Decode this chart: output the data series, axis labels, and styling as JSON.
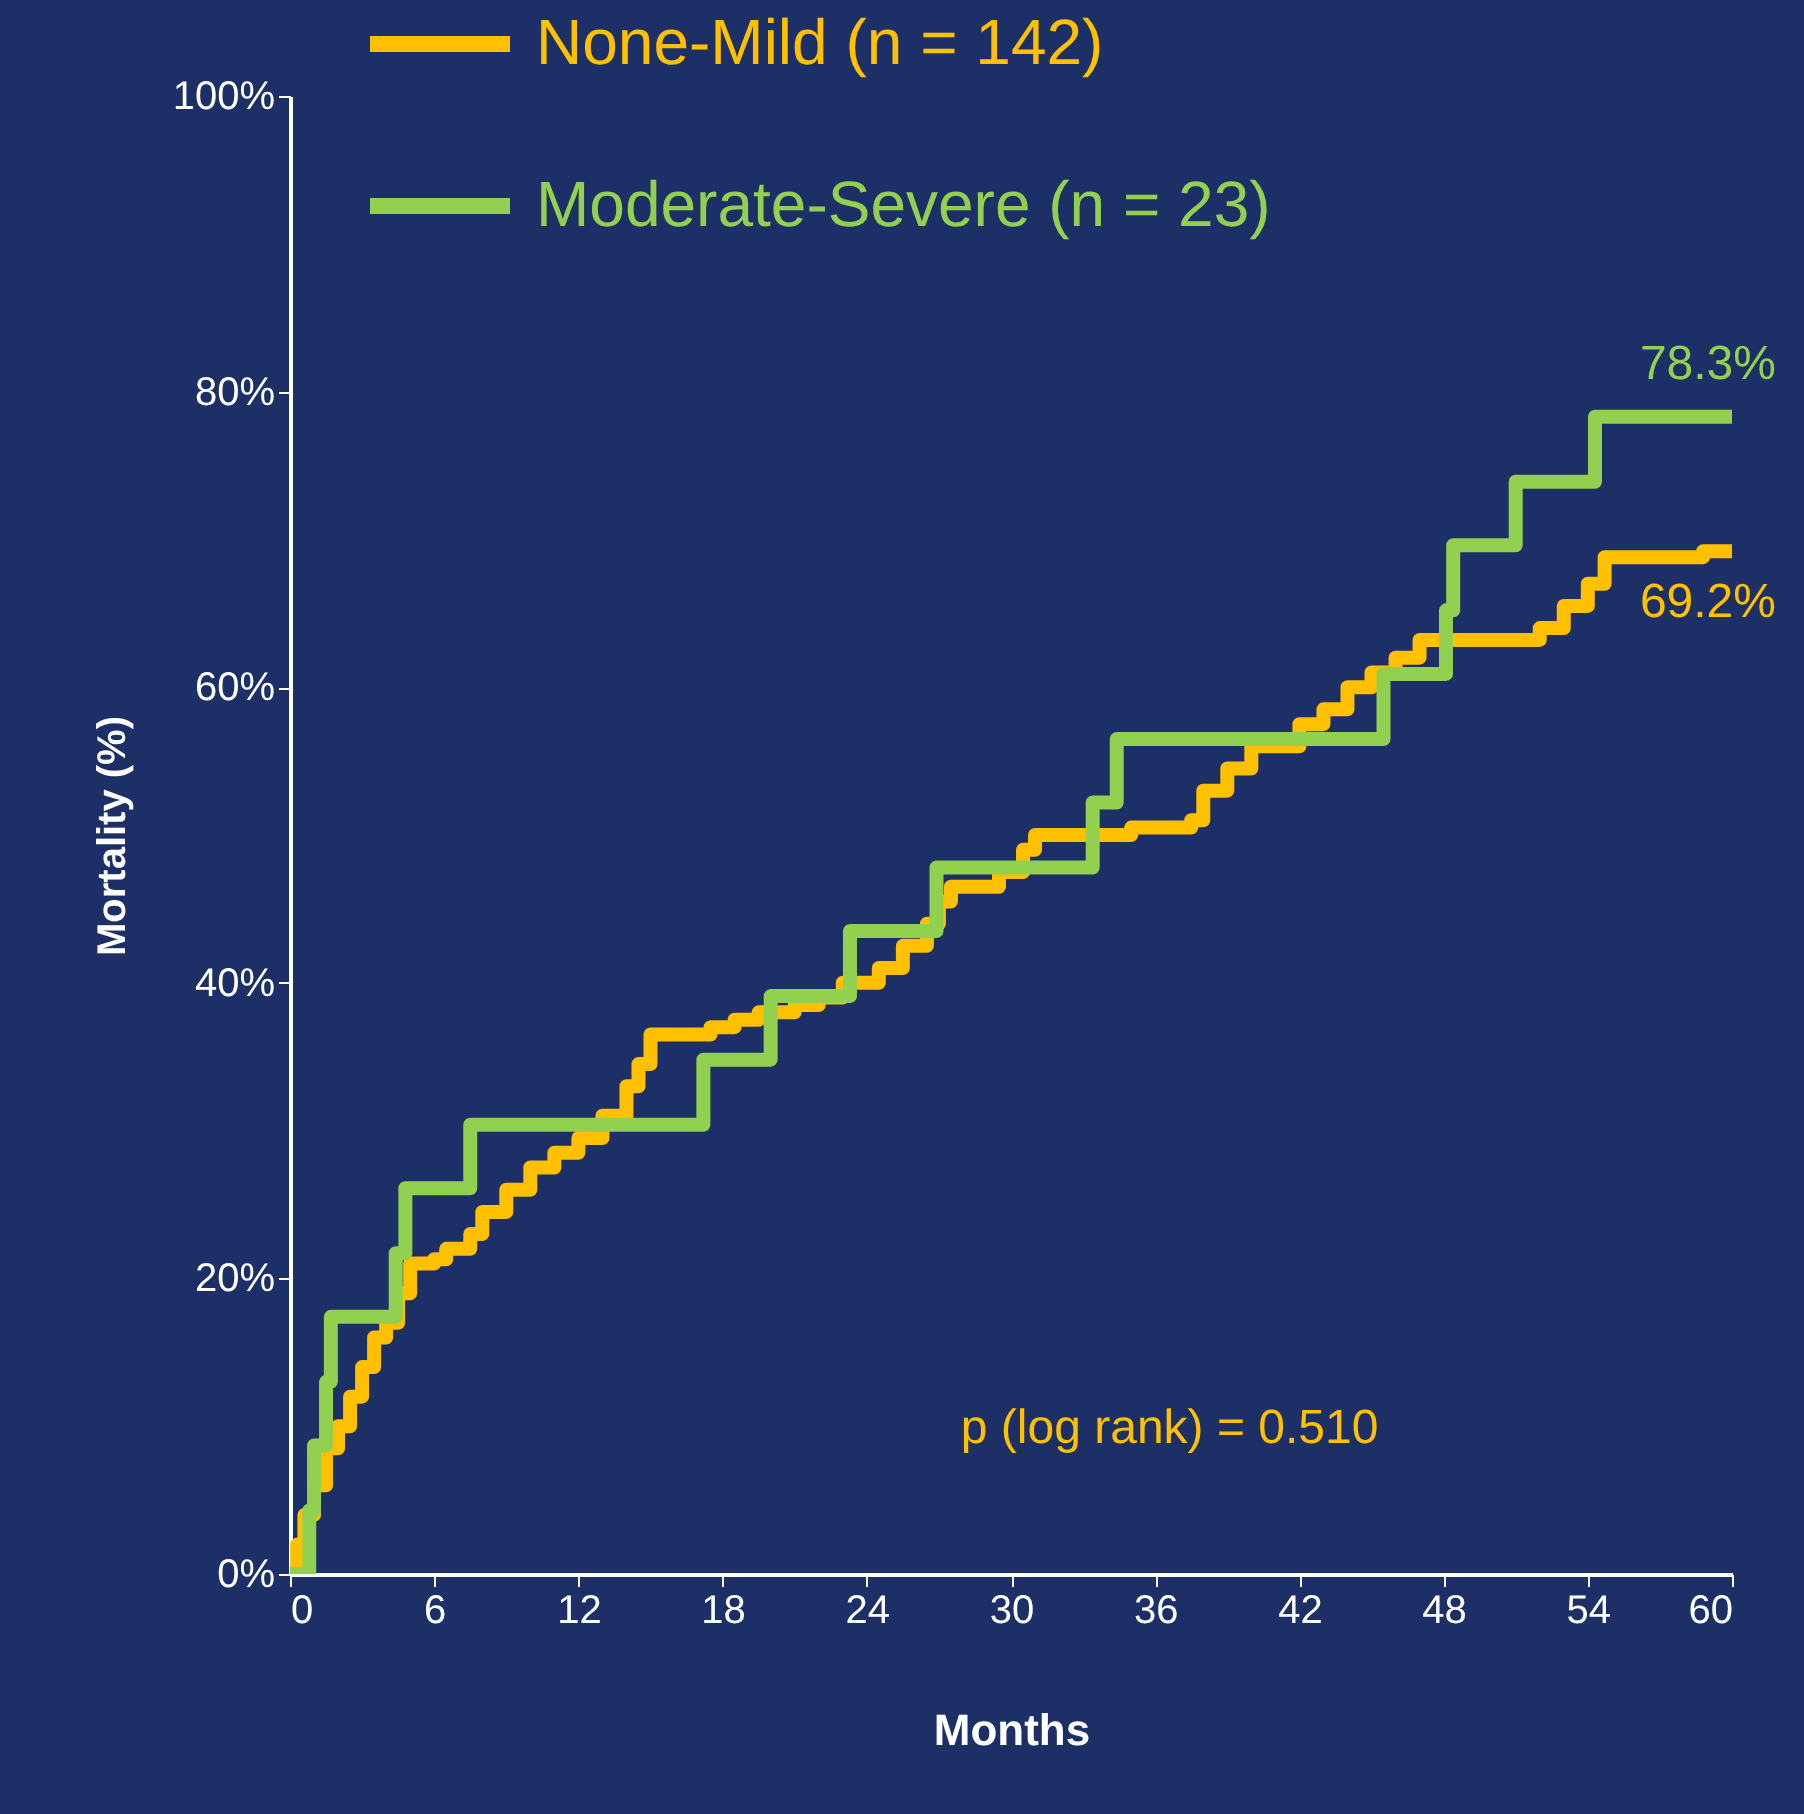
{
  "chart_data": {
    "type": "step",
    "xlabel": "Months",
    "ylabel": "Mortality (%)",
    "xlim": [
      0,
      60
    ],
    "xticks": [
      0,
      6,
      12,
      18,
      24,
      30,
      36,
      42,
      48,
      54,
      60
    ],
    "ylim": [
      0,
      100
    ],
    "yticks": [
      {
        "value": 0,
        "label": "0%"
      },
      {
        "value": 20,
        "label": "20%"
      },
      {
        "value": 40,
        "label": "40%"
      },
      {
        "value": 60,
        "label": "60%"
      },
      {
        "value": 80,
        "label": "80%"
      },
      {
        "value": 100,
        "label": "100%"
      }
    ],
    "grid": false,
    "legend": "top left",
    "line_style": "solid",
    "marker": "none",
    "series": [
      {
        "name": "None-Mild (n = 142)",
        "color": "#ffc000",
        "x": [
          0,
          0.3,
          0.6,
          1.0,
          1.5,
          2,
          2.5,
          3,
          3.5,
          4,
          4.5,
          5,
          6,
          6.5,
          7.5,
          8,
          9,
          10,
          11,
          12,
          13,
          14,
          14.5,
          15,
          17.5,
          18.5,
          19.5,
          21,
          22,
          23,
          24.5,
          25.5,
          26.5,
          27,
          27.5,
          29.5,
          30.5,
          31,
          35,
          37.5,
          38,
          39,
          40,
          42,
          43,
          44,
          45,
          46,
          47,
          52,
          53,
          54,
          54.7,
          58.8,
          60
        ],
        "values": [
          0,
          2,
          4,
          6,
          8.5,
          10,
          12,
          14,
          16,
          17,
          19,
          21,
          21.3,
          22,
          23,
          24.5,
          26,
          27.5,
          28.5,
          29.5,
          31,
          33,
          34.5,
          36.5,
          37,
          37.5,
          38,
          38.5,
          39,
          40,
          41,
          42.5,
          44,
          45.5,
          46.5,
          47.5,
          49,
          50,
          50.5,
          51,
          53,
          54.5,
          56,
          57.5,
          58.5,
          60,
          61,
          62,
          63.2,
          64,
          65.5,
          67,
          68.8,
          69.2,
          69.2
        ]
      },
      {
        "name": "Moderate-Severe (n = 23)",
        "color": "#92d050",
        "x": [
          0,
          0.8,
          1.0,
          1.5,
          1.7,
          4.4,
          4.8,
          7.5,
          17.2,
          20.0,
          23.3,
          26.9,
          33.4,
          34.4,
          45.5,
          48.1,
          48.4,
          51.0,
          54.3,
          60
        ],
        "values": [
          0,
          4.3,
          8.7,
          13.0,
          17.4,
          21.7,
          26.1,
          30.4,
          34.8,
          39.1,
          43.5,
          47.8,
          52.2,
          56.5,
          60.9,
          65.2,
          69.6,
          73.9,
          78.3,
          78.3
        ]
      }
    ],
    "annotations": [
      {
        "text": "78.3%",
        "x": 60,
        "y": 78.3
      },
      {
        "text": "69.2%",
        "x": 60,
        "y": 69.2
      },
      "p (log rank) = 0.510"
    ]
  }
}
